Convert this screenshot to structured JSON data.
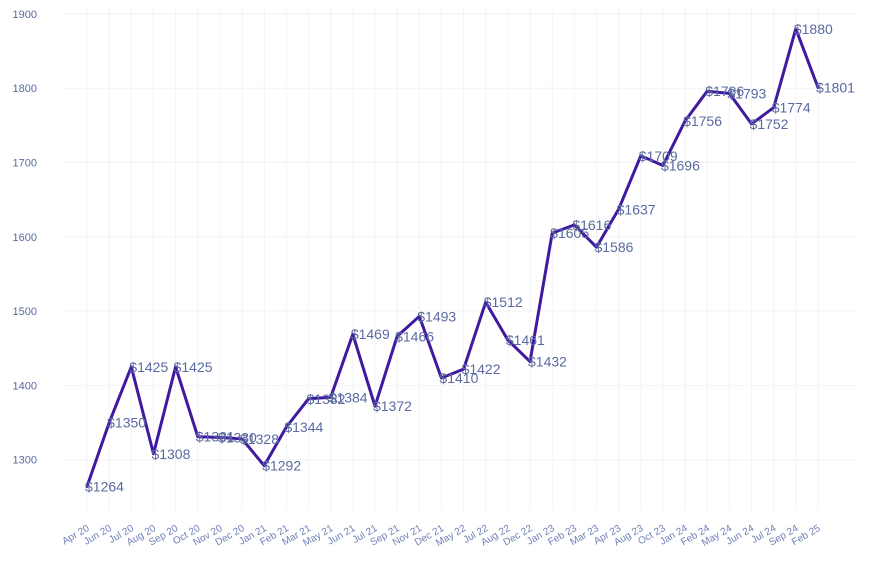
{
  "chart_data": {
    "type": "line",
    "title": "",
    "xlabel": "",
    "ylabel": "",
    "ylim": [
      1235,
      1908
    ],
    "yticks": [
      1300,
      1400,
      1500,
      1600,
      1700,
      1800,
      1900
    ],
    "grid": true,
    "line_color": "#3f1aa0",
    "label_prefix": "$",
    "categories": [
      "Apr 20",
      "Jun 20",
      "Jul 20",
      "Aug 20",
      "Sep 20",
      "Oct 20",
      "Nov 20",
      "Dec 20",
      "Jan 21",
      "Feb 21",
      "Mar 21",
      "May 21",
      "Jun 21",
      "Jul 21",
      "Sep 21",
      "Nov 21",
      "Dec 21",
      "May 22",
      "Jul 22",
      "Aug 22",
      "Dec 22",
      "Jan 23",
      "Feb 23",
      "Mar 23",
      "Apr 23",
      "Aug 23",
      "Oct 23",
      "Jan 24",
      "Feb 24",
      "May 24",
      "Jun 24",
      "Jul 24",
      "Sep 24",
      "Feb 25"
    ],
    "values": [
      1264,
      1350,
      1425,
      1308,
      1425,
      1331,
      1330,
      1328,
      1292,
      1344,
      1382,
      1384,
      1469,
      1372,
      1466,
      1493,
      1410,
      1422,
      1512,
      1461,
      1432,
      1605,
      1616,
      1586,
      1637,
      1709,
      1696,
      1756,
      1796,
      1793,
      1752,
      1774,
      1880,
      1801
    ]
  }
}
